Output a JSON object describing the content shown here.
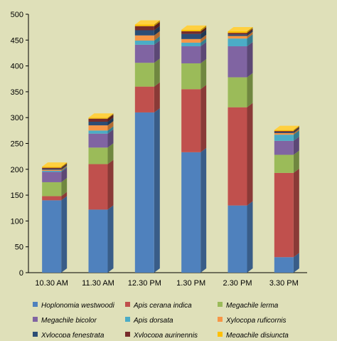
{
  "chart_data": {
    "type": "bar",
    "stacked": true,
    "three_d": true,
    "categories": [
      "10.30 AM",
      "11.30 AM",
      "12.30 PM",
      "1.30 PM",
      "2.30 PM",
      "3.30 PM"
    ],
    "ylim": [
      0,
      500
    ],
    "yticks": [
      0,
      50,
      100,
      150,
      200,
      250,
      300,
      350,
      400,
      450,
      500
    ],
    "grid": false,
    "legend_position": "bottom",
    "series": [
      {
        "name": "Hoplonomia westwoodi",
        "color": "#4f81bd",
        "values": [
          140,
          122,
          310,
          233,
          130,
          30
        ]
      },
      {
        "name": "Apis cerana indica",
        "color": "#c0504d",
        "values": [
          8,
          88,
          50,
          122,
          190,
          163
        ]
      },
      {
        "name": "Megachile lerma",
        "color": "#9bbb59",
        "values": [
          27,
          32,
          46,
          50,
          58,
          35
        ]
      },
      {
        "name": "Megachile bicolor",
        "color": "#8064a2",
        "values": [
          20,
          27,
          35,
          33,
          60,
          27
        ]
      },
      {
        "name": "Apis dorsata",
        "color": "#4bacc6",
        "values": [
          2,
          6,
          8,
          7,
          15,
          12
        ]
      },
      {
        "name": "Xylocopa ruficornis",
        "color": "#f79646",
        "values": [
          2,
          10,
          10,
          7,
          5,
          3
        ]
      },
      {
        "name": "Xylocopa fenestrata",
        "color": "#2c4d75",
        "values": [
          2,
          7,
          10,
          10,
          3,
          2
        ]
      },
      {
        "name": "Xylocopa aurinennis",
        "color": "#772c2a",
        "values": [
          2,
          6,
          8,
          5,
          3,
          2
        ]
      },
      {
        "name": "Megachile disjuncta",
        "color": "#ffc000",
        "values": [
          2,
          2,
          3,
          3,
          3,
          2
        ]
      }
    ]
  }
}
